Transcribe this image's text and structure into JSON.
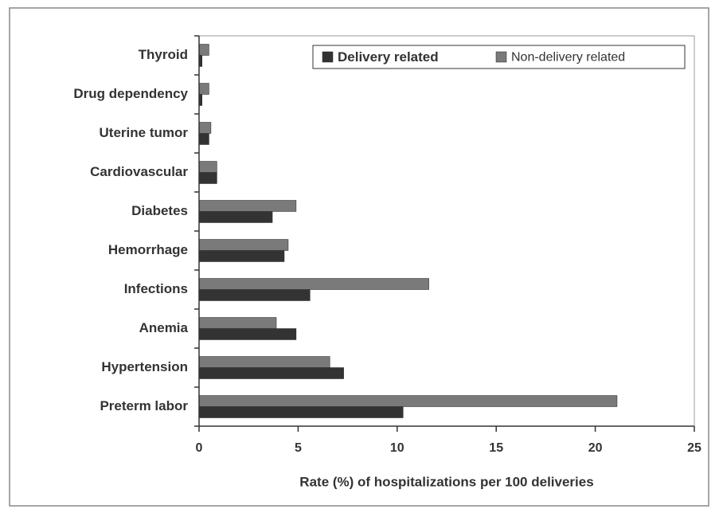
{
  "chart_data": {
    "type": "hbar",
    "xlabel": "Rate (%) of hospitalizations per 100 deliveries",
    "categories": [
      "Thyroid",
      "Drug dependency",
      "Uterine tumor",
      "Cardiovascular",
      "Diabetes",
      "Hemorrhage",
      "Infections",
      "Anemia",
      "Hypertension",
      "Preterm labor"
    ],
    "series": [
      {
        "name": "Delivery related",
        "color": "#333333",
        "values": [
          0.15,
          0.15,
          0.5,
          0.9,
          3.7,
          4.3,
          5.6,
          4.9,
          7.3,
          10.3
        ]
      },
      {
        "name": "Non-delivery related",
        "color": "#7a7a7a",
        "values": [
          0.5,
          0.5,
          0.6,
          0.9,
          4.9,
          4.5,
          11.6,
          3.9,
          6.6,
          21.1
        ]
      }
    ],
    "xlim": [
      0,
      25
    ],
    "xticks": [
      0,
      5,
      10,
      15,
      20,
      25
    ],
    "legend": "top-right"
  }
}
